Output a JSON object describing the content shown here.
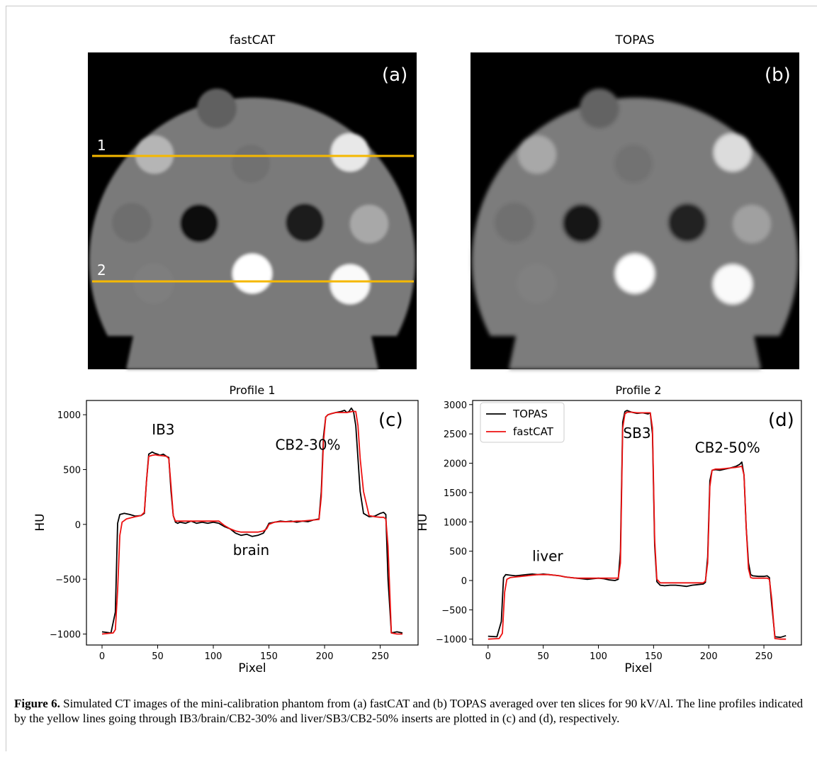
{
  "panels": {
    "a": {
      "title": "fastCAT",
      "letter": "(a)"
    },
    "b": {
      "title": "TOPAS",
      "letter": "(b)"
    }
  },
  "profile_lines": {
    "label1": "1",
    "label2": "2",
    "color": "#F5B800"
  },
  "caption": {
    "label": "Figure 6.",
    "text": "Simulated CT images of the mini-calibration phantom from (a) fastCAT and (b) TOPAS averaged over ten slices for 90 kV/Al. The line profiles indicated by the yellow lines going through IB3/brain/CB2-30% and liver/SB3/CB2-50% inserts are plotted in (c) and (d), respectively."
  },
  "chart_data": [
    {
      "panel": "c",
      "type": "line",
      "title": "Profile 1",
      "letter": "(c)",
      "xlabel": "Pixel",
      "ylabel": "HU",
      "xlim": [
        -14,
        284
      ],
      "ylim": [
        -1100,
        1130
      ],
      "xticks": [
        0,
        50,
        100,
        150,
        200,
        250
      ],
      "yticks": [
        -1000,
        -500,
        0,
        500,
        1000
      ],
      "ytick_labels": [
        "−1000",
        "−500",
        "0",
        "500",
        "1000"
      ],
      "annotations": [
        {
          "text": "IB3",
          "x": 55,
          "y": 820
        },
        {
          "text": "CB2-30%",
          "x": 185,
          "y": 680
        },
        {
          "text": "brain",
          "x": 134,
          "y": -280
        }
      ],
      "series": [
        {
          "color": "#000000",
          "x": [
            0,
            8,
            12,
            14,
            16,
            20,
            25,
            30,
            35,
            38,
            40,
            42,
            45,
            47,
            50,
            52,
            55,
            58,
            60,
            62,
            64,
            66,
            68,
            70,
            75,
            80,
            85,
            90,
            95,
            100,
            105,
            110,
            115,
            120,
            125,
            130,
            135,
            140,
            145,
            148,
            150,
            155,
            160,
            165,
            170,
            175,
            180,
            185,
            190,
            195,
            197,
            199,
            201,
            203,
            206,
            210,
            215,
            218,
            220,
            222,
            224,
            226,
            228,
            230,
            232,
            235,
            240,
            245,
            250,
            253,
            255,
            257,
            260,
            265,
            270
          ],
          "y": [
            -980,
            -990,
            -800,
            10,
            90,
            100,
            90,
            75,
            80,
            100,
            400,
            640,
            660,
            650,
            640,
            630,
            640,
            620,
            610,
            300,
            80,
            20,
            10,
            20,
            10,
            30,
            10,
            20,
            10,
            20,
            10,
            -20,
            -40,
            -80,
            -100,
            -90,
            -110,
            -100,
            -80,
            -30,
            10,
            20,
            30,
            25,
            30,
            20,
            30,
            25,
            40,
            50,
            300,
            800,
            980,
            1000,
            1010,
            1020,
            1030,
            1040,
            1020,
            1030,
            1060,
            1030,
            900,
            600,
            300,
            100,
            70,
            75,
            100,
            110,
            90,
            -500,
            -990,
            -980,
            -990
          ]
        },
        {
          "color": "#ee1111",
          "x": [
            0,
            10,
            12,
            14,
            16,
            18,
            22,
            26,
            30,
            35,
            38,
            40,
            42,
            45,
            48,
            50,
            55,
            58,
            60,
            62,
            64,
            66,
            68,
            70,
            75,
            80,
            85,
            90,
            95,
            100,
            105,
            110,
            115,
            120,
            125,
            130,
            135,
            140,
            145,
            148,
            150,
            155,
            160,
            165,
            170,
            175,
            180,
            185,
            190,
            195,
            197,
            199,
            201,
            203,
            206,
            210,
            215,
            220,
            225,
            228,
            230,
            232,
            235,
            240,
            245,
            250,
            253,
            255,
            257,
            260,
            265,
            270
          ],
          "y": [
            -1000,
            -990,
            -960,
            -600,
            -100,
            20,
            50,
            60,
            70,
            80,
            110,
            400,
            620,
            630,
            635,
            630,
            625,
            620,
            600,
            350,
            80,
            30,
            30,
            30,
            30,
            30,
            30,
            30,
            30,
            30,
            30,
            -10,
            -40,
            -60,
            -70,
            -70,
            -70,
            -70,
            -60,
            -40,
            0,
            20,
            25,
            25,
            25,
            30,
            30,
            35,
            40,
            45,
            250,
            750,
            980,
            1000,
            1010,
            1020,
            1020,
            1020,
            1030,
            1030,
            900,
            600,
            300,
            80,
            70,
            65,
            65,
            50,
            -200,
            -990,
            -1000,
            -1000
          ]
        }
      ]
    },
    {
      "panel": "d",
      "type": "line",
      "title": "Profile 2",
      "letter": "(d)",
      "xlabel": "Pixel",
      "ylabel": "HU",
      "xlim": [
        -14,
        284
      ],
      "ylim": [
        -1100,
        3070
      ],
      "xticks": [
        0,
        50,
        100,
        150,
        200,
        250
      ],
      "yticks": [
        -1000,
        -500,
        0,
        500,
        1000,
        1500,
        2000,
        2500,
        3000
      ],
      "ytick_labels": [
        "−1000",
        "−500",
        "0",
        "500",
        "1000",
        "1500",
        "2000",
        "2500",
        "3000"
      ],
      "annotations": [
        {
          "text": "liver",
          "x": 54,
          "y": 330
        },
        {
          "text": "SB3",
          "x": 135,
          "y": 2430
        },
        {
          "text": "CB2-50%",
          "x": 217,
          "y": 2180
        }
      ],
      "legend": {
        "placement": "upper left",
        "entries": [
          {
            "label": "TOPAS",
            "color": "#000000"
          },
          {
            "label": "fastCAT",
            "color": "#ee1111"
          }
        ]
      },
      "series": [
        {
          "color": "#000000",
          "x": [
            0,
            8,
            12,
            14,
            16,
            20,
            25,
            30,
            35,
            40,
            45,
            50,
            55,
            60,
            65,
            70,
            75,
            80,
            85,
            90,
            95,
            100,
            105,
            110,
            115,
            118,
            120,
            122,
            124,
            126,
            130,
            135,
            140,
            145,
            147,
            149,
            151,
            153,
            156,
            160,
            165,
            170,
            175,
            180,
            185,
            190,
            195,
            197,
            199,
            201,
            203,
            206,
            210,
            215,
            220,
            225,
            228,
            230,
            232,
            234,
            236,
            238,
            240,
            245,
            250,
            253,
            255,
            257,
            260,
            265,
            270
          ],
          "y": [
            -950,
            -960,
            -700,
            50,
            100,
            90,
            80,
            90,
            100,
            110,
            100,
            110,
            100,
            90,
            80,
            60,
            50,
            40,
            30,
            20,
            30,
            40,
            30,
            10,
            0,
            20,
            500,
            2700,
            2880,
            2900,
            2870,
            2850,
            2860,
            2840,
            2860,
            2500,
            600,
            -20,
            -80,
            -90,
            -80,
            -80,
            -90,
            -100,
            -80,
            -70,
            -60,
            -30,
            400,
            1700,
            1880,
            1890,
            1880,
            1900,
            1920,
            1950,
            1980,
            2020,
            1800,
            900,
            300,
            100,
            80,
            70,
            70,
            80,
            50,
            -400,
            -960,
            -970,
            -940
          ]
        },
        {
          "color": "#ee1111",
          "x": [
            0,
            10,
            13,
            15,
            17,
            20,
            25,
            30,
            35,
            40,
            45,
            50,
            55,
            60,
            65,
            70,
            75,
            80,
            85,
            90,
            95,
            100,
            105,
            110,
            115,
            118,
            120,
            122,
            124,
            126,
            130,
            135,
            140,
            145,
            147,
            149,
            151,
            153,
            156,
            160,
            165,
            170,
            175,
            180,
            185,
            190,
            195,
            197,
            199,
            201,
            203,
            206,
            210,
            215,
            220,
            225,
            228,
            230,
            232,
            234,
            236,
            238,
            240,
            245,
            250,
            253,
            255,
            257,
            260,
            265,
            270
          ],
          "y": [
            -1000,
            -990,
            -900,
            -200,
            20,
            50,
            60,
            70,
            80,
            90,
            100,
            100,
            100,
            90,
            80,
            60,
            50,
            40,
            40,
            40,
            40,
            40,
            40,
            40,
            40,
            40,
            300,
            2600,
            2840,
            2870,
            2870,
            2860,
            2860,
            2860,
            2860,
            2600,
            700,
            20,
            -40,
            -40,
            -40,
            -40,
            -40,
            -40,
            -40,
            -40,
            -40,
            -10,
            300,
            1600,
            1880,
            1900,
            1900,
            1910,
            1920,
            1930,
            1940,
            1950,
            1800,
            900,
            200,
            50,
            40,
            40,
            40,
            40,
            20,
            -300,
            -990,
            -1000,
            -1000
          ]
        }
      ]
    }
  ]
}
